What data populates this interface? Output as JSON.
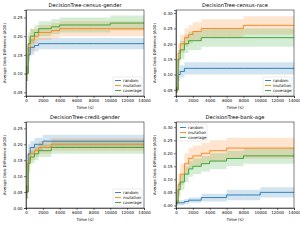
{
  "chart_data": [
    {
      "type": "line",
      "title": "DecisionTree-census-gender",
      "x_label": "Time (s)",
      "y_label": "Average Odds Difference (AOD)",
      "line_style": "step",
      "legend": "lower right",
      "x": [
        0,
        250,
        500,
        1000,
        1500,
        2000,
        3000,
        4000,
        6000,
        8000,
        10000,
        12000,
        14000
      ],
      "xlim": [
        0,
        14000
      ],
      "xticks": [
        0,
        2000,
        4000,
        6000,
        8000,
        10000,
        12000,
        14000
      ],
      "ylim": [
        0.04,
        0.27
      ],
      "yticks": [
        {
          "value": 0.05,
          "label": "0.05"
        },
        {
          "value": 0.1,
          "label": "0.10"
        },
        {
          "value": 0.15,
          "label": "0.15"
        },
        {
          "value": 0.2,
          "label": "0.20"
        },
        {
          "value": 0.25,
          "label": "0.25"
        }
      ],
      "series": [
        {
          "name": "random",
          "color": "#1f77b4",
          "values": [
            0.1,
            0.15,
            0.17,
            0.175,
            0.18,
            0.18,
            0.18,
            0.18,
            0.18,
            0.18,
            0.18,
            0.18,
            0.18
          ],
          "lower": [
            0.08,
            0.13,
            0.15,
            0.16,
            0.165,
            0.165,
            0.165,
            0.165,
            0.165,
            0.165,
            0.165,
            0.165,
            0.165
          ],
          "upper": [
            0.12,
            0.17,
            0.19,
            0.19,
            0.195,
            0.195,
            0.195,
            0.195,
            0.195,
            0.195,
            0.195,
            0.195,
            0.195
          ]
        },
        {
          "name": "mutation",
          "color": "#ff7f0e",
          "values": [
            0.1,
            0.17,
            0.19,
            0.2,
            0.21,
            0.21,
            0.215,
            0.22,
            0.22,
            0.22,
            0.22,
            0.22,
            0.22
          ],
          "lower": [
            0.08,
            0.14,
            0.16,
            0.18,
            0.19,
            0.19,
            0.195,
            0.2,
            0.2,
            0.2,
            0.2,
            0.2,
            0.2
          ],
          "upper": [
            0.12,
            0.2,
            0.22,
            0.22,
            0.23,
            0.23,
            0.235,
            0.24,
            0.24,
            0.24,
            0.24,
            0.24,
            0.24
          ]
        },
        {
          "name": "coverage",
          "color": "#2ca02c",
          "values": [
            0.1,
            0.18,
            0.2,
            0.21,
            0.22,
            0.22,
            0.225,
            0.23,
            0.23,
            0.23,
            0.235,
            0.235,
            0.235
          ],
          "lower": [
            0.08,
            0.15,
            0.18,
            0.19,
            0.2,
            0.2,
            0.205,
            0.21,
            0.21,
            0.21,
            0.215,
            0.215,
            0.215
          ],
          "upper": [
            0.12,
            0.21,
            0.22,
            0.23,
            0.24,
            0.24,
            0.245,
            0.25,
            0.25,
            0.25,
            0.255,
            0.255,
            0.255
          ]
        }
      ]
    },
    {
      "type": "line",
      "title": "DecisionTree-census-race",
      "x_label": "Time (s)",
      "y_label": "Average Odds Difference (AOD)",
      "line_style": "step",
      "legend": "lower right",
      "x": [
        0,
        250,
        500,
        1000,
        1500,
        2000,
        3000,
        4000,
        6000,
        8000,
        10000,
        12000,
        14000
      ],
      "xlim": [
        0,
        14000
      ],
      "xticks": [
        0,
        2000,
        4000,
        6000,
        8000,
        10000,
        12000,
        14000
      ],
      "ylim": [
        0.03,
        0.31
      ],
      "yticks": [
        {
          "value": 0.05,
          "label": "0.05"
        },
        {
          "value": 0.1,
          "label": "0.10"
        },
        {
          "value": 0.15,
          "label": "0.15"
        },
        {
          "value": 0.2,
          "label": "0.20"
        },
        {
          "value": 0.25,
          "label": "0.25"
        },
        {
          "value": 0.3,
          "label": "0.30"
        }
      ],
      "series": [
        {
          "name": "random",
          "color": "#1f77b4",
          "values": [
            0.05,
            0.1,
            0.11,
            0.12,
            0.12,
            0.12,
            0.12,
            0.12,
            0.12,
            0.12,
            0.12,
            0.12,
            0.12
          ],
          "lower": [
            0.04,
            0.08,
            0.09,
            0.1,
            0.1,
            0.1,
            0.1,
            0.1,
            0.1,
            0.1,
            0.1,
            0.1,
            0.1
          ],
          "upper": [
            0.06,
            0.12,
            0.13,
            0.14,
            0.14,
            0.14,
            0.14,
            0.14,
            0.14,
            0.14,
            0.14,
            0.14,
            0.14
          ]
        },
        {
          "name": "mutation",
          "color": "#ff7f0e",
          "values": [
            0.05,
            0.17,
            0.2,
            0.22,
            0.23,
            0.24,
            0.25,
            0.25,
            0.25,
            0.26,
            0.26,
            0.26,
            0.26
          ],
          "lower": [
            0.04,
            0.14,
            0.17,
            0.19,
            0.2,
            0.21,
            0.22,
            0.22,
            0.22,
            0.23,
            0.23,
            0.23,
            0.23
          ],
          "upper": [
            0.06,
            0.2,
            0.23,
            0.25,
            0.26,
            0.27,
            0.28,
            0.28,
            0.28,
            0.29,
            0.29,
            0.29,
            0.29
          ]
        },
        {
          "name": "coverage",
          "color": "#2ca02c",
          "values": [
            0.05,
            0.15,
            0.18,
            0.2,
            0.21,
            0.21,
            0.22,
            0.22,
            0.22,
            0.22,
            0.22,
            0.22,
            0.22
          ],
          "lower": [
            0.04,
            0.12,
            0.15,
            0.17,
            0.18,
            0.18,
            0.19,
            0.19,
            0.19,
            0.19,
            0.19,
            0.19,
            0.19
          ],
          "upper": [
            0.06,
            0.18,
            0.21,
            0.23,
            0.24,
            0.24,
            0.25,
            0.25,
            0.25,
            0.25,
            0.25,
            0.25,
            0.25
          ]
        }
      ]
    },
    {
      "type": "line",
      "title": "DecisionTree-credit-gender",
      "x_label": "Time (s)",
      "y_label": "Average Odds Difference (AOD)",
      "line_style": "step",
      "legend": "lower right",
      "x": [
        0,
        250,
        500,
        1000,
        1500,
        2000,
        3000,
        4000,
        6000,
        8000,
        10000,
        12000,
        14000
      ],
      "xlim": [
        0,
        14000
      ],
      "xticks": [
        0,
        2000,
        4000,
        6000,
        8000,
        10000,
        12000,
        14000
      ],
      "ylim": [
        0,
        0.27
      ],
      "yticks": [
        {
          "value": 0,
          "label": "0.00"
        },
        {
          "value": 0.05,
          "label": "0.05"
        },
        {
          "value": 0.1,
          "label": "0.10"
        },
        {
          "value": 0.15,
          "label": "0.15"
        },
        {
          "value": 0.2,
          "label": "0.20"
        },
        {
          "value": 0.25,
          "label": "0.25"
        }
      ],
      "series": [
        {
          "name": "random",
          "color": "#1f77b4",
          "values": [
            0.05,
            0.17,
            0.19,
            0.2,
            0.2,
            0.21,
            0.21,
            0.21,
            0.21,
            0.21,
            0.21,
            0.21,
            0.21
          ],
          "lower": [
            0.03,
            0.14,
            0.17,
            0.18,
            0.18,
            0.19,
            0.19,
            0.19,
            0.19,
            0.19,
            0.19,
            0.19,
            0.19
          ],
          "upper": [
            0.07,
            0.2,
            0.21,
            0.22,
            0.22,
            0.23,
            0.23,
            0.23,
            0.23,
            0.23,
            0.23,
            0.23,
            0.23
          ]
        },
        {
          "name": "mutation",
          "color": "#ff7f0e",
          "values": [
            0.05,
            0.15,
            0.17,
            0.18,
            0.19,
            0.19,
            0.2,
            0.2,
            0.2,
            0.2,
            0.2,
            0.2,
            0.2
          ],
          "lower": [
            0.03,
            0.12,
            0.15,
            0.16,
            0.17,
            0.17,
            0.18,
            0.18,
            0.18,
            0.18,
            0.18,
            0.18,
            0.18
          ],
          "upper": [
            0.07,
            0.18,
            0.19,
            0.2,
            0.21,
            0.21,
            0.22,
            0.22,
            0.22,
            0.22,
            0.22,
            0.22,
            0.22
          ]
        },
        {
          "name": "coverage",
          "color": "#2ca02c",
          "values": [
            0.05,
            0.14,
            0.16,
            0.17,
            0.18,
            0.18,
            0.19,
            0.19,
            0.19,
            0.19,
            0.19,
            0.19,
            0.19
          ],
          "lower": [
            0.03,
            0.11,
            0.14,
            0.15,
            0.16,
            0.16,
            0.17,
            0.17,
            0.17,
            0.17,
            0.17,
            0.17,
            0.17
          ],
          "upper": [
            0.07,
            0.17,
            0.18,
            0.19,
            0.2,
            0.2,
            0.21,
            0.21,
            0.21,
            0.21,
            0.21,
            0.21,
            0.21
          ]
        }
      ]
    },
    {
      "type": "line",
      "title": "DecisionTree-bank-age",
      "x_label": "Time (s)",
      "y_label": "Average Odds Difference (AOD)",
      "line_style": "step",
      "legend": "upper left",
      "x": [
        0,
        250,
        500,
        1000,
        1500,
        2000,
        3000,
        4000,
        6000,
        8000,
        10000,
        12000,
        14000
      ],
      "xlim": [
        0,
        14000
      ],
      "xticks": [
        0,
        2000,
        4000,
        6000,
        8000,
        10000,
        12000,
        14000
      ],
      "ylim": [
        -0.01,
        0.32
      ],
      "yticks": [
        {
          "value": 0,
          "label": "0.00"
        },
        {
          "value": 0.05,
          "label": "0.05"
        },
        {
          "value": 0.1,
          "label": "0.10"
        },
        {
          "value": 0.15,
          "label": "0.15"
        },
        {
          "value": 0.2,
          "label": "0.20"
        },
        {
          "value": 0.25,
          "label": "0.25"
        },
        {
          "value": 0.3,
          "label": "0.30"
        }
      ],
      "series": [
        {
          "name": "random",
          "color": "#1f77b4",
          "values": [
            0.01,
            0.01,
            0.01,
            0.015,
            0.02,
            0.02,
            0.03,
            0.03,
            0.04,
            0.04,
            0.05,
            0.05,
            0.05
          ],
          "lower": [
            0.0,
            0.0,
            0.0,
            0.005,
            0.01,
            0.01,
            0.015,
            0.015,
            0.02,
            0.02,
            0.03,
            0.03,
            0.03
          ],
          "upper": [
            0.02,
            0.02,
            0.02,
            0.025,
            0.03,
            0.03,
            0.045,
            0.045,
            0.06,
            0.06,
            0.07,
            0.07,
            0.07
          ]
        },
        {
          "name": "mutation",
          "color": "#ff7f0e",
          "values": [
            0.01,
            0.08,
            0.12,
            0.16,
            0.18,
            0.19,
            0.2,
            0.21,
            0.22,
            0.22,
            0.22,
            0.22,
            0.22
          ],
          "lower": [
            0.0,
            0.04,
            0.08,
            0.12,
            0.14,
            0.15,
            0.16,
            0.17,
            0.18,
            0.18,
            0.18,
            0.18,
            0.18
          ],
          "upper": [
            0.02,
            0.12,
            0.16,
            0.2,
            0.22,
            0.23,
            0.24,
            0.25,
            0.26,
            0.26,
            0.26,
            0.26,
            0.26
          ]
        },
        {
          "name": "coverage",
          "color": "#2ca02c",
          "values": [
            0.01,
            0.06,
            0.09,
            0.12,
            0.14,
            0.15,
            0.16,
            0.17,
            0.18,
            0.19,
            0.19,
            0.19,
            0.19
          ],
          "lower": [
            0.0,
            0.03,
            0.06,
            0.09,
            0.11,
            0.12,
            0.13,
            0.14,
            0.15,
            0.16,
            0.16,
            0.16,
            0.16
          ],
          "upper": [
            0.02,
            0.09,
            0.12,
            0.15,
            0.17,
            0.18,
            0.19,
            0.2,
            0.21,
            0.22,
            0.22,
            0.22,
            0.22
          ]
        }
      ]
    }
  ]
}
